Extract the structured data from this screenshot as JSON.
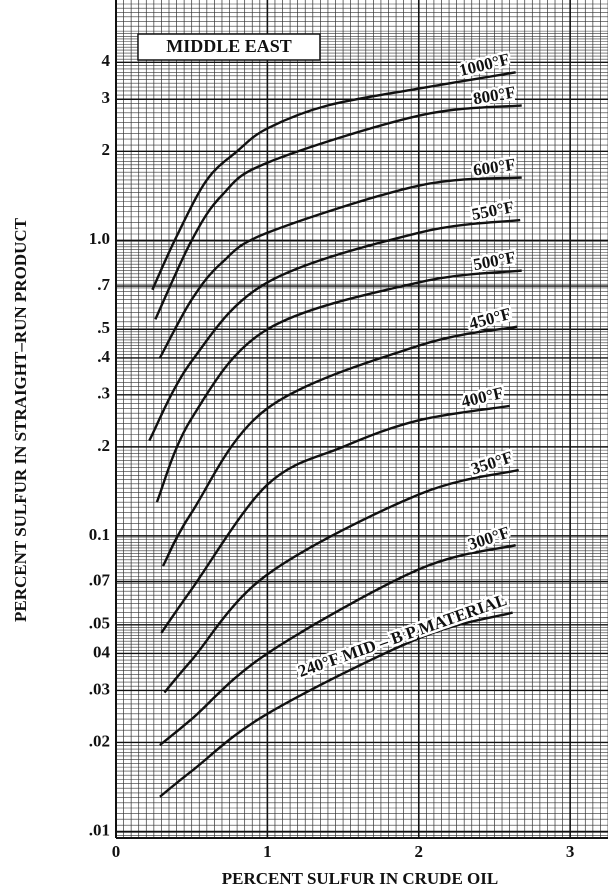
{
  "chart_data": {
    "type": "line",
    "title": "MIDDLE EAST",
    "x_label": "PERCENT SULFUR IN CRUDE OIL",
    "y_label": "PERCENT SULFUR IN STRAIGHT–RUN PRODUCT",
    "xlim": [
      0,
      3.25
    ],
    "ylim": [
      0.0095,
      6.5
    ],
    "log_y": true,
    "grid": true,
    "xticks": [
      0,
      1,
      2,
      3
    ],
    "yticks": [
      4,
      3,
      2,
      {
        "value": 1,
        "label": "1.0"
      },
      {
        "value": 0.7,
        "label": ".7"
      },
      {
        "value": 0.5,
        "label": ".5"
      },
      {
        "value": 0.4,
        "label": ".4"
      },
      {
        "value": 0.3,
        "label": ".3"
      },
      {
        "value": 0.2,
        "label": ".2"
      },
      0.1,
      {
        "value": 0.07,
        "label": ".07"
      },
      {
        "value": 0.05,
        "label": ".05"
      },
      {
        "value": 0.04,
        "label": "04"
      },
      {
        "value": 0.03,
        "label": ".03"
      },
      {
        "value": 0.02,
        "label": ".02"
      },
      {
        "value": 0.01,
        "label": ".01"
      }
    ],
    "series": [
      {
        "name": "1000°F",
        "color": "#111111",
        "x": [
          0.24,
          0.4,
          0.6,
          0.8,
          1.0,
          1.4,
          2.0,
          2.64
        ],
        "values": [
          0.68,
          1.03,
          1.6,
          2.0,
          2.39,
          2.86,
          3.26,
          3.7
        ]
      },
      {
        "name": "800°F",
        "color": "#111111",
        "x": [
          0.26,
          0.5,
          0.7,
          1.0,
          2.0,
          2.68
        ],
        "values": [
          0.54,
          1.0,
          1.42,
          1.83,
          2.64,
          2.86
        ]
      },
      {
        "name": "600°F",
        "color": "#111111",
        "x": [
          0.29,
          0.5,
          0.7,
          1.0,
          2.0,
          2.68
        ],
        "values": [
          0.4,
          0.63,
          0.84,
          1.06,
          1.53,
          1.63
        ]
      },
      {
        "name": "550°F",
        "color": "#111111",
        "x": [
          0.22,
          0.5,
          1.0,
          2.0,
          2.67
        ],
        "values": [
          0.21,
          0.39,
          0.72,
          1.06,
          1.17
        ]
      },
      {
        "name": "500°F",
        "color": "#111111",
        "x": [
          0.27,
          0.5,
          1.0,
          2.0,
          2.68
        ],
        "values": [
          0.13,
          0.25,
          0.5,
          0.72,
          0.79
        ]
      },
      {
        "name": "450°F",
        "color": "#111111",
        "x": [
          0.31,
          0.5,
          1.0,
          2.0,
          2.65
        ],
        "values": [
          0.079,
          0.12,
          0.27,
          0.44,
          0.51
        ]
      },
      {
        "name": "400°F",
        "color": "#111111",
        "x": [
          0.3,
          0.5,
          1.0,
          1.5,
          2.0,
          2.6
        ],
        "values": [
          0.047,
          0.066,
          0.149,
          0.2,
          0.246,
          0.275
        ]
      },
      {
        "name": "350°F",
        "color": "#111111",
        "x": [
          0.32,
          0.5,
          1.0,
          2.0,
          2.66
        ],
        "values": [
          0.0295,
          0.038,
          0.074,
          0.138,
          0.167
        ]
      },
      {
        "name": "300°F",
        "color": "#111111",
        "x": [
          0.29,
          0.5,
          1.0,
          2.0,
          2.64
        ],
        "values": [
          0.0196,
          0.024,
          0.04,
          0.077,
          0.093
        ]
      },
      {
        "name": "240°F MID – B P MATERIAL",
        "color": "#111111",
        "x": [
          0.29,
          0.5,
          1.0,
          2.0,
          2.62
        ],
        "values": [
          0.0131,
          0.016,
          0.025,
          0.045,
          0.055
        ]
      }
    ]
  }
}
